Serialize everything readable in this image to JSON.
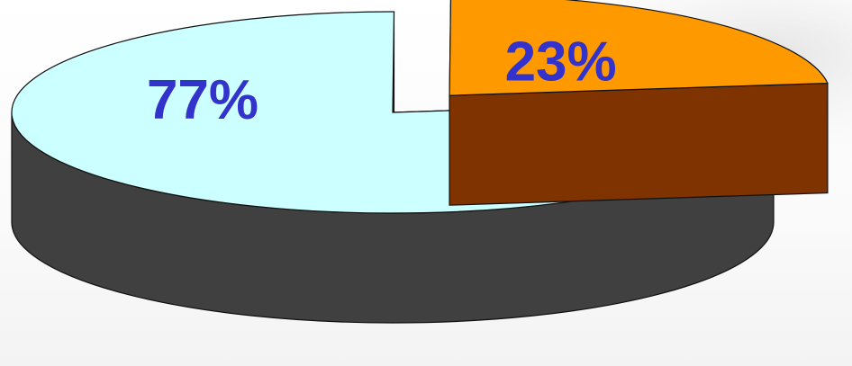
{
  "chart_data": {
    "type": "pie",
    "style": "3d-exploded",
    "slices": [
      {
        "label": "77%",
        "value": 77,
        "top_color": "#ccffff",
        "side_color": "#404040"
      },
      {
        "label": "23%",
        "value": 23,
        "top_color": "#ff9900",
        "side_color": "#7f3300",
        "exploded": true
      }
    ],
    "label_color": "#3333cc",
    "legend": "none"
  }
}
